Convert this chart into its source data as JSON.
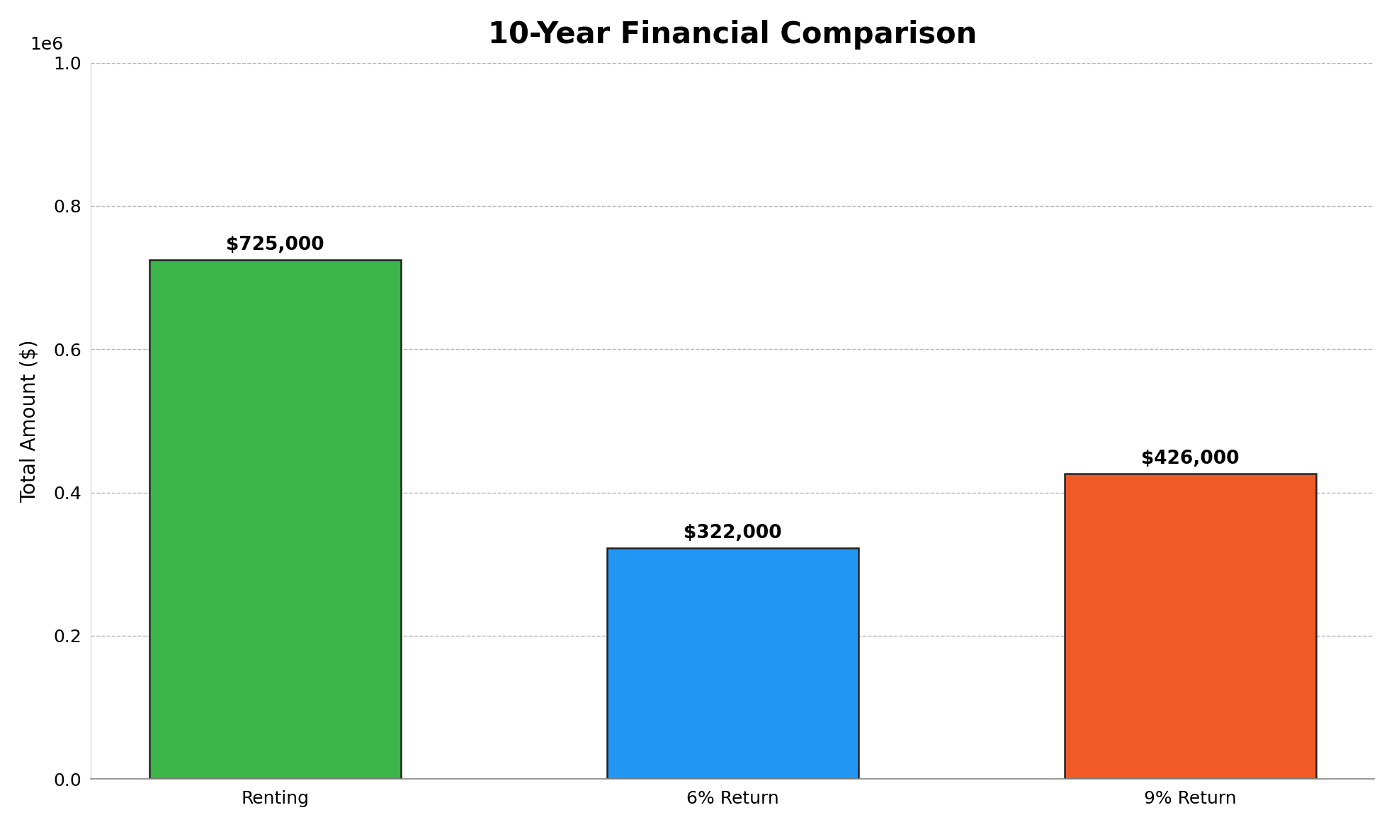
{
  "title": "10-Year Financial Comparison",
  "categories": [
    "Renting",
    "6% Return",
    "9% Return"
  ],
  "values": [
    725000,
    322000,
    426000
  ],
  "bar_colors": [
    "#3cb54a",
    "#2196f3",
    "#f05a28"
  ],
  "bar_edge_colors": [
    "#222222",
    "#222222",
    "#222222"
  ],
  "ylabel": "Total Amount ($)",
  "ylim": [
    0,
    1000000
  ],
  "yticks": [
    0.0,
    0.2,
    0.4,
    0.6,
    0.8,
    1.0
  ],
  "label_format": [
    "$725,000",
    "$322,000",
    "$426,000"
  ],
  "background_color": "#ffffff",
  "title_fontsize": 30,
  "axis_label_fontsize": 20,
  "tick_fontsize": 18,
  "annotation_fontsize": 19,
  "grid_color": "#aaaaaa",
  "bar_width": 0.55
}
